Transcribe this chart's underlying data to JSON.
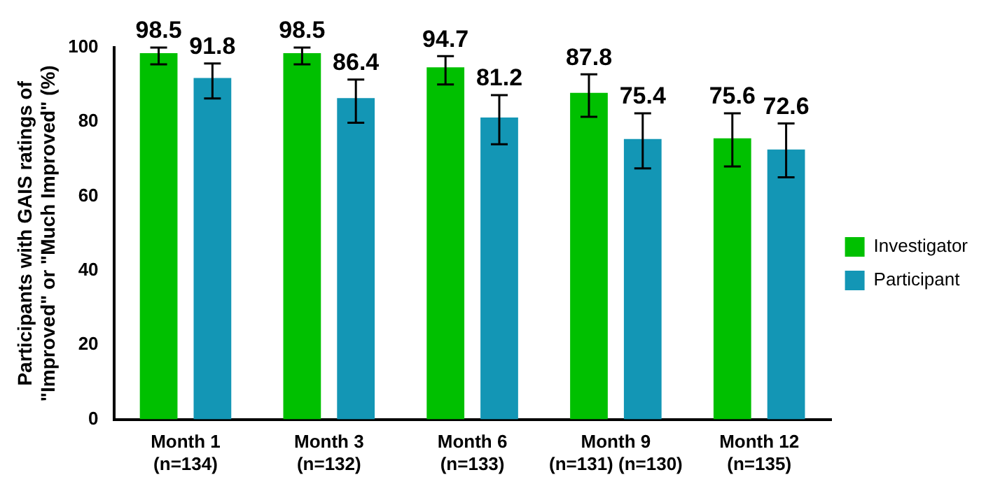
{
  "chart_data": {
    "type": "bar",
    "ylabel": "Participants with GAIS ratings of\n\"Improved\" or \"Much Improved\" (%)",
    "categories": [
      "Month 1\n(n=134)",
      "Month 3\n(n=132)",
      "Month 6\n(n=133)",
      "Month 9\n(n=131) (n=130)",
      "Month 12\n(n=135)"
    ],
    "series": [
      {
        "name": "Investigator",
        "color": "#00c000",
        "values": [
          98.5,
          98.5,
          94.7,
          87.8,
          75.6
        ],
        "errors": [
          [
            95.5,
            100
          ],
          [
            95.5,
            100
          ],
          [
            90.1,
            97.7
          ],
          [
            81.4,
            92.8
          ],
          [
            68,
            82.3
          ]
        ]
      },
      {
        "name": "Participant",
        "color": "#1396b5",
        "values": [
          91.8,
          86.4,
          81.2,
          75.4,
          72.6
        ],
        "errors": [
          [
            86.3,
            95.7
          ],
          [
            79.8,
            91.4
          ],
          [
            74,
            87.2
          ],
          [
            67.5,
            82.3
          ],
          [
            65.1,
            79.6
          ]
        ]
      }
    ],
    "ylim": [
      0,
      100
    ],
    "yticks": [
      0,
      20,
      40,
      60,
      80,
      100
    ],
    "grid": false,
    "legend": "right",
    "data_labels": true
  }
}
